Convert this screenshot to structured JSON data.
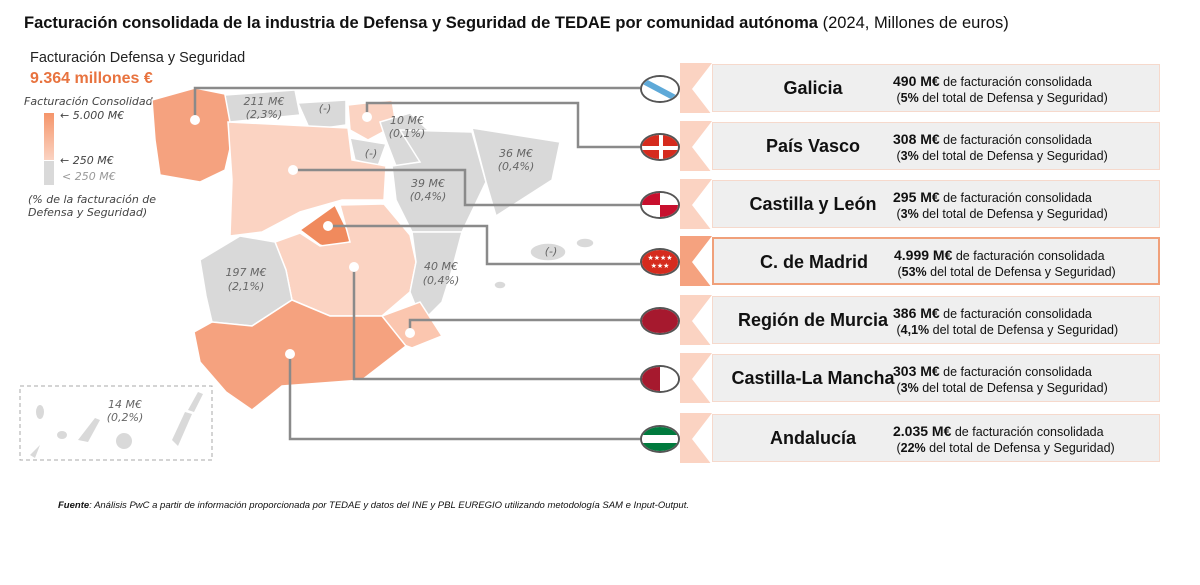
{
  "title": {
    "bold": "Facturación consolidada de la industria de Defensa y Seguridad de TEDAE por comunidad autónoma",
    "normal": " (2024, Millones de euros)"
  },
  "summary": {
    "label": "Facturación Defensa y Seguridad",
    "total": "9.364 millones €"
  },
  "legend": {
    "title": "Facturación Consolidada",
    "max": "5.000 M€",
    "mid": "250 M€",
    "low": "< 250 M€",
    "note1": "(% de la facturación de",
    "note2": "Defensa y Seguridad)"
  },
  "colors": {
    "high": "#f08a5d",
    "mid": "#f5a27f",
    "light": "#fbd3c2",
    "gray": "#d9d9d9",
    "accent": "#e8733f"
  },
  "map_labels": [
    {
      "v": "211 M€",
      "p": "(2,3%)"
    },
    {
      "v": "(-)",
      "p": ""
    },
    {
      "v": "10 M€",
      "p": "(0,1%)"
    },
    {
      "v": "(-)",
      "p": ""
    },
    {
      "v": "36 M€",
      "p": "(0,4%)"
    },
    {
      "v": "39 M€",
      "p": "(0,4%)"
    },
    {
      "v": "(-)",
      "p": ""
    },
    {
      "v": "197 M€",
      "p": "(2,1%)"
    },
    {
      "v": "40 M€",
      "p": "(0,4%)"
    },
    {
      "v": "14 M€",
      "p": "(0,2%)"
    }
  ],
  "regions": [
    {
      "name": "Galicia",
      "value": "490 M€",
      "text": " de facturación consolidada",
      "pct": "5%",
      "pct_text": " del total de Defensa y Seguridad)",
      "flag": "galicia-flag"
    },
    {
      "name": "País Vasco",
      "value": "308 M€",
      "text": " de facturación consolidada",
      "pct": "3%",
      "pct_text": " del total de Defensa y Seguridad)",
      "flag": "pais-vasco-flag"
    },
    {
      "name": "Castilla y León",
      "value": "295 M€",
      "text": " de facturación consolidada",
      "pct": "3%",
      "pct_text": " del total de Defensa y Seguridad)",
      "flag": "castilla-leon-flag"
    },
    {
      "name": "C. de Madrid",
      "value": "4.999 M€",
      "text": " de facturación consolidada",
      "pct": "53%",
      "pct_text": " del total de Defensa y Seguridad)",
      "flag": "madrid-flag"
    },
    {
      "name": "Región de Murcia",
      "value": "386 M€",
      "text": " de facturación consolidada",
      "pct": "4,1%",
      "pct_text": " del total de Defensa y Seguridad)",
      "flag": "murcia-flag"
    },
    {
      "name": "Castilla-La Mancha",
      "value": "303 M€",
      "text": " de facturación consolidada",
      "pct": "3%",
      "pct_text": " del total de Defensa y Seguridad)",
      "flag": "castilla-la-mancha-flag"
    },
    {
      "name": "Andalucía",
      "value": "2.035 M€",
      "text": " de facturación consolidada",
      "pct": "22%",
      "pct_text": " del total de Defensa y Seguridad)",
      "flag": "andalucia-flag"
    }
  ],
  "source": {
    "label": "Fuente",
    "text": ": Análisis PwC a partir de información proporcionada por TEDAE y datos del INE y PBL EUREGIO utilizando metodología SAM e Input-Output."
  }
}
